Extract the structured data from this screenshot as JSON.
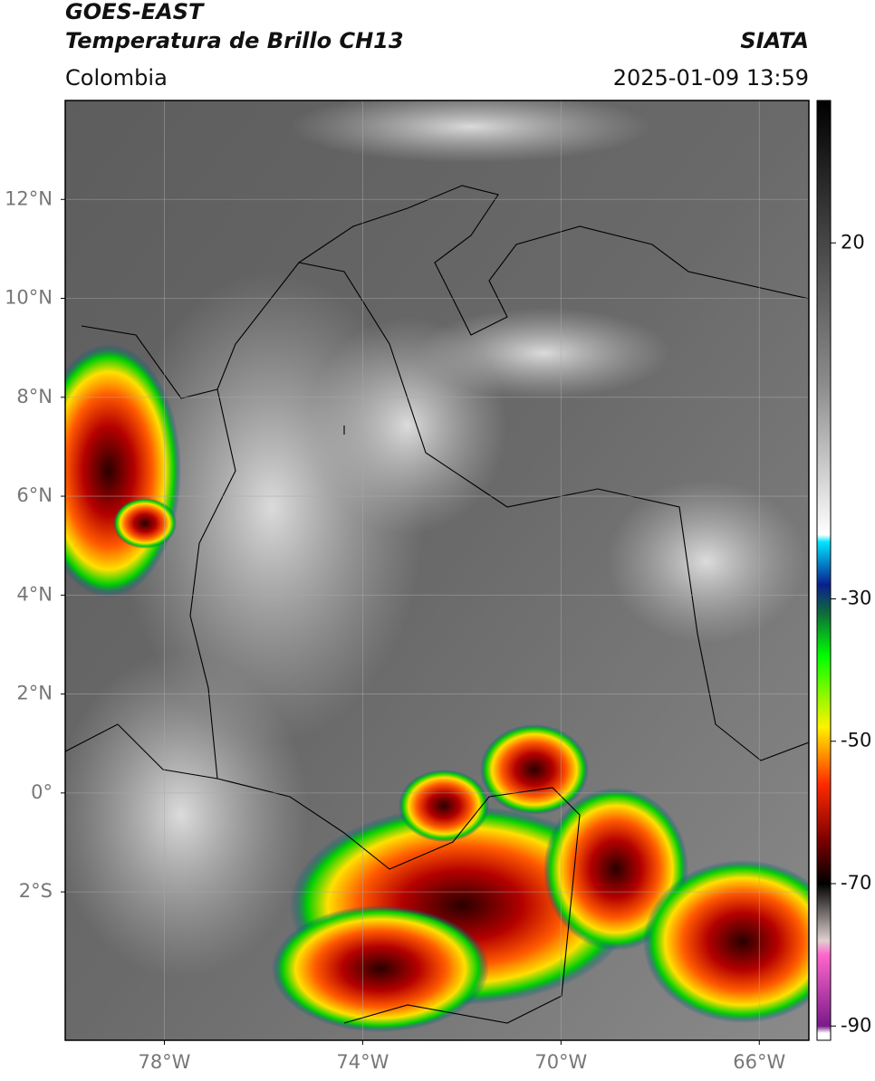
{
  "header": {
    "title": "GOES-EAST",
    "subtitle": "Temperatura de Brillo CH13",
    "source": "SIATA",
    "region": "Colombia",
    "timestamp": "2025-01-09 13:59"
  },
  "map": {
    "lon_range": [
      -80,
      -65
    ],
    "lat_range": [
      -5,
      14
    ],
    "lat_ticks": [
      {
        "value": 12,
        "label": "12°N"
      },
      {
        "value": 10,
        "label": "10°N"
      },
      {
        "value": 8,
        "label": "8°N"
      },
      {
        "value": 6,
        "label": "6°N"
      },
      {
        "value": 4,
        "label": "4°N"
      },
      {
        "value": 2,
        "label": "2°N"
      },
      {
        "value": 0,
        "label": "0°"
      },
      {
        "value": -2,
        "label": "2°S"
      }
    ],
    "lon_ticks": [
      {
        "value": -78,
        "label": "78°W"
      },
      {
        "value": -74,
        "label": "74°W"
      },
      {
        "value": -70,
        "label": "70°W"
      },
      {
        "value": -66,
        "label": "66°W"
      }
    ],
    "grid": true
  },
  "colorbar": {
    "lim": [
      -92,
      40
    ],
    "ticks": [
      20,
      -30,
      -50,
      -70,
      -90
    ],
    "colormap": [
      {
        "value": 40,
        "color": "#000000"
      },
      {
        "value": 0,
        "color": "#8c8c8c"
      },
      {
        "value": -21,
        "color": "#ffffff"
      },
      {
        "value": -22,
        "color": "#00e5ff"
      },
      {
        "value": -28,
        "color": "#0a1f8f"
      },
      {
        "value": -32,
        "color": "#0f6b3a"
      },
      {
        "value": -38,
        "color": "#00ff00"
      },
      {
        "value": -48,
        "color": "#fff200"
      },
      {
        "value": -56,
        "color": "#ff2a00"
      },
      {
        "value": -64,
        "color": "#7a0000"
      },
      {
        "value": -70,
        "color": "#000000"
      },
      {
        "value": -78,
        "color": "#e0d0d0"
      },
      {
        "value": -80,
        "color": "#ff66cc"
      },
      {
        "value": -90,
        "color": "#7a1a8a"
      },
      {
        "value": -91,
        "color": "#ffffff"
      }
    ]
  }
}
